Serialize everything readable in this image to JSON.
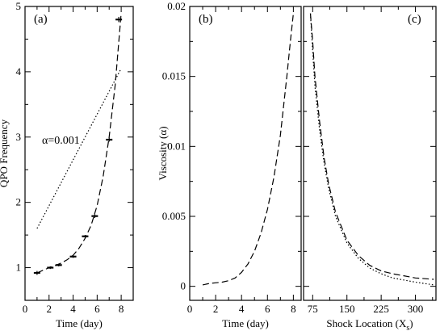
{
  "chart_data": [
    {
      "panel": "(a)",
      "type": "line",
      "xlabel": "Time (day)",
      "ylabel": "QPO Frequency",
      "xlim": [
        0,
        9
      ],
      "ylim": [
        0.5,
        5
      ],
      "xticks": [
        0,
        2,
        4,
        6,
        8
      ],
      "yticks": [
        1,
        2,
        3,
        4,
        5
      ],
      "annotation": "α=0.001",
      "series": [
        {
          "style": "points-with-errorbars",
          "x": [
            1.0,
            2.1,
            2.8,
            4.0,
            5.0,
            5.8,
            7.0,
            7.8
          ],
          "y": [
            0.92,
            1.0,
            1.04,
            1.17,
            1.48,
            1.79,
            2.96,
            4.8
          ],
          "yerr": [
            0.03,
            0.02,
            0.02,
            0.02,
            0.02,
            0.03,
            0.03,
            0.04
          ]
        },
        {
          "style": "dashed",
          "x": [
            1.0,
            1.5,
            2.0,
            2.5,
            3.0,
            3.5,
            4.0,
            4.5,
            5.0,
            5.5,
            6.0,
            6.5,
            7.0,
            7.5,
            8.0
          ],
          "y": [
            0.92,
            0.96,
            1.0,
            1.03,
            1.07,
            1.12,
            1.19,
            1.3,
            1.45,
            1.65,
            1.95,
            2.4,
            3.0,
            3.8,
            4.9
          ]
        },
        {
          "style": "dotted",
          "x": [
            1.0,
            8.0
          ],
          "y": [
            1.6,
            4.05
          ]
        }
      ]
    },
    {
      "panel": "(b)",
      "type": "line",
      "xlabel": "Time (day)",
      "ylabel": "Viscosity (α)",
      "xlim": [
        0,
        8.6
      ],
      "ylim": [
        -0.001,
        0.02
      ],
      "xticks": [
        0,
        2,
        4,
        6,
        8
      ],
      "yticks": [
        0,
        0.005,
        0.01,
        0.015,
        0.02
      ],
      "ytick_labels": [
        "0",
        "0.005",
        "0.01",
        "0.015",
        "0.02"
      ],
      "series": [
        {
          "style": "dashed",
          "x": [
            1.0,
            1.5,
            2.0,
            2.5,
            3.0,
            3.5,
            4.0,
            4.5,
            5.0,
            5.5,
            6.0,
            6.5,
            7.0,
            7.5,
            7.8,
            8.0
          ],
          "y": [
            0.0001,
            0.0002,
            0.00025,
            0.0003,
            0.0004,
            0.0006,
            0.001,
            0.0016,
            0.0025,
            0.0038,
            0.0055,
            0.0078,
            0.0108,
            0.015,
            0.0178,
            0.0195
          ]
        }
      ]
    },
    {
      "panel": "(c)",
      "type": "line",
      "xlabel": "Shock Location (X",
      "xlabel_sub": "s",
      "xlabel_close": ")",
      "ylabel": "",
      "xlim": [
        55,
        345
      ],
      "ylim": [
        -0.001,
        0.02
      ],
      "xticks": [
        75,
        150,
        225,
        300
      ],
      "series": [
        {
          "style": "dashed",
          "x": [
            70,
            75,
            80,
            90,
            100,
            110,
            125,
            150,
            175,
            200,
            225,
            250,
            300,
            340
          ],
          "y": [
            0.0195,
            0.0175,
            0.015,
            0.0118,
            0.0092,
            0.0073,
            0.0053,
            0.0033,
            0.0022,
            0.0015,
            0.0011,
            0.0009,
            0.0006,
            0.0005
          ]
        },
        {
          "style": "dotted",
          "x": [
            70,
            75,
            80,
            90,
            100,
            110,
            125,
            150,
            175,
            200,
            225,
            250,
            300,
            340
          ],
          "y": [
            0.0195,
            0.0168,
            0.0143,
            0.0112,
            0.0088,
            0.007,
            0.005,
            0.0031,
            0.002,
            0.0013,
            0.0009,
            0.0006,
            0.0003,
            0.0001
          ]
        }
      ]
    }
  ]
}
